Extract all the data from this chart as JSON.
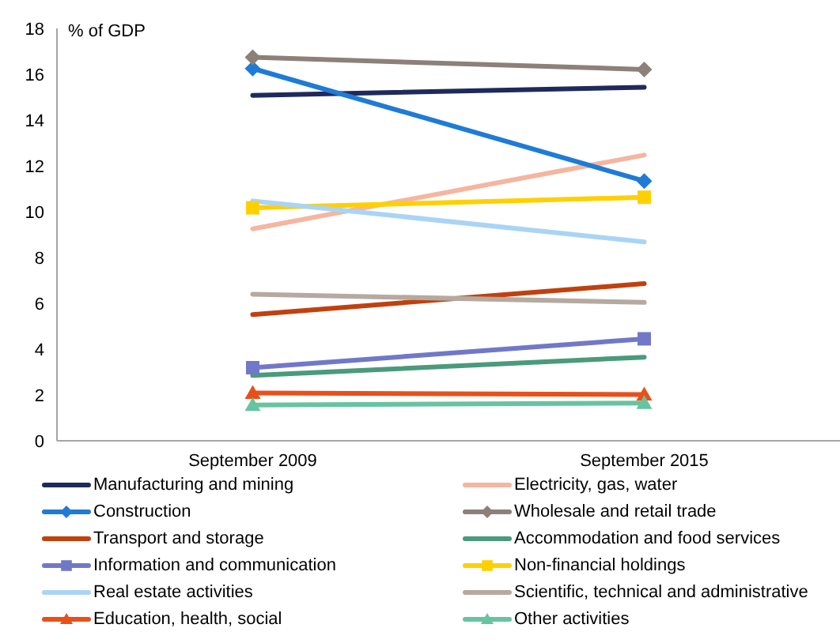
{
  "chart_data": {
    "type": "line",
    "ylabel": "% of GDP",
    "categories": [
      "September 2009",
      "September 2015"
    ],
    "ylim": [
      0,
      18
    ],
    "yticks": [
      0,
      2,
      4,
      6,
      8,
      10,
      12,
      14,
      16,
      18
    ],
    "grid": false,
    "legend": "bottom",
    "series": [
      {
        "name": "Manufacturing and mining",
        "color": "#1f2a5c",
        "marker": "none",
        "values": [
          15.08,
          15.43
        ]
      },
      {
        "name": "Electricity, gas, water",
        "color": "#f4b6a0",
        "marker": "none",
        "values": [
          9.25,
          12.47
        ]
      },
      {
        "name": "Construction",
        "color": "#1f7bd6",
        "marker": "diamond",
        "values": [
          16.25,
          11.34
        ]
      },
      {
        "name": "Wholesale and retail trade",
        "color": "#8c8079",
        "marker": "diamond",
        "values": [
          16.74,
          16.21
        ]
      },
      {
        "name": "Transport and storage",
        "color": "#c0410f",
        "marker": "none",
        "values": [
          5.51,
          6.86
        ]
      },
      {
        "name": "Accommodation and food services",
        "color": "#4a9a7c",
        "marker": "none",
        "values": [
          2.85,
          3.65
        ]
      },
      {
        "name": "Information and communication",
        "color": "#7178c8",
        "marker": "square",
        "values": [
          3.19,
          4.45
        ]
      },
      {
        "name": "Non-financial holdings",
        "color": "#ffd000",
        "marker": "square",
        "values": [
          10.17,
          10.63
        ]
      },
      {
        "name": "Real estate activities",
        "color": "#a9d4f5",
        "marker": "none",
        "values": [
          10.47,
          8.68
        ]
      },
      {
        "name": "Scientific, technical and administrative",
        "color": "#b5a9a0",
        "marker": "none",
        "values": [
          6.4,
          6.04
        ]
      },
      {
        "name": "Education, health, social",
        "color": "#e8501a",
        "marker": "triangle",
        "values": [
          2.09,
          2.02
        ]
      },
      {
        "name": "Other activities",
        "color": "#66c4a0",
        "marker": "triangle",
        "values": [
          1.56,
          1.65
        ]
      }
    ]
  }
}
